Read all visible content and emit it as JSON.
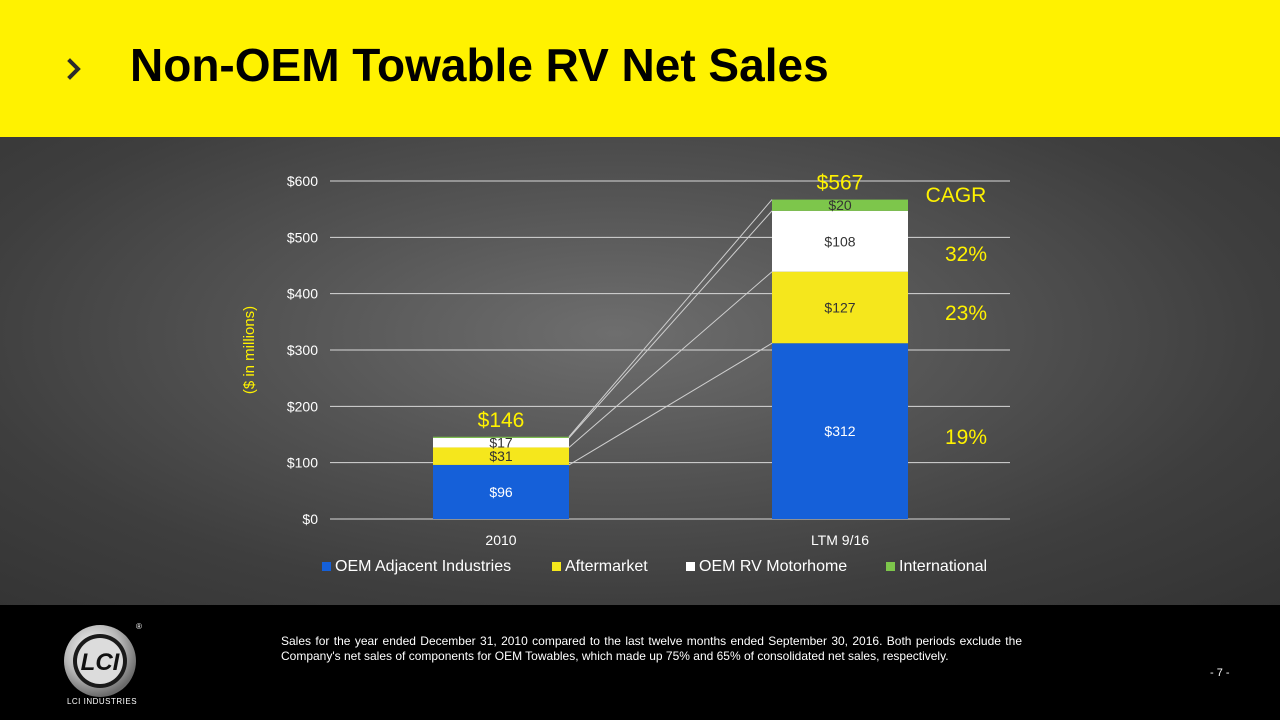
{
  "slide": {
    "title": "Non-OEM Towable RV Net Sales",
    "footnote": "Sales for the year ended December 31, 2010 compared to the last twelve months ended September 30, 2016. Both periods exclude the Company's net sales of components for OEM Towables, which made up 75% and 65% of consolidated net sales, respectively.",
    "page_number": "- 7 -",
    "company_name": "LCI INDUSTRIES",
    "logo_text": "LCI",
    "registered_mark": "®"
  },
  "chart_data": {
    "type": "bar",
    "stacked": true,
    "title": "",
    "xlabel": "",
    "ylabel": "($ in millions)",
    "ylim": [
      0,
      600
    ],
    "yticks": [
      0,
      100,
      200,
      300,
      400,
      500,
      600
    ],
    "ytick_labels": [
      "$0",
      "$100",
      "$200",
      "$300",
      "$400",
      "$500",
      "$600"
    ],
    "grid": true,
    "legend_position": "bottom",
    "categories": [
      "2010",
      "LTM 9/16"
    ],
    "series": [
      {
        "name": "OEM Adjacent Industries",
        "values": [
          96,
          312
        ],
        "labels": [
          "$96",
          "$312"
        ],
        "color": "#1560d9",
        "label_color": "#ffffff"
      },
      {
        "name": "Aftermarket",
        "values": [
          31,
          127
        ],
        "labels": [
          "$31",
          "$127"
        ],
        "color": "#f5e71c",
        "label_color": "#333333"
      },
      {
        "name": "OEM RV Motorhome",
        "values": [
          17,
          108
        ],
        "labels": [
          "$17",
          "$108"
        ],
        "color": "#ffffff",
        "label_color": "#333333"
      },
      {
        "name": "International",
        "values": [
          2,
          20
        ],
        "labels": [
          "",
          "$20"
        ],
        "color": "#7dc64b",
        "label_color": "#333333"
      }
    ],
    "totals": [
      146,
      567
    ],
    "total_labels": [
      "$146",
      "$567"
    ],
    "cagr": {
      "header": "CAGR",
      "values": [
        "32%",
        "23%",
        "19%"
      ],
      "color": "#fff200"
    },
    "colors": {
      "grid": "#d8d8d8",
      "text": "#ffffff",
      "connector": "#cfcfcf"
    }
  }
}
